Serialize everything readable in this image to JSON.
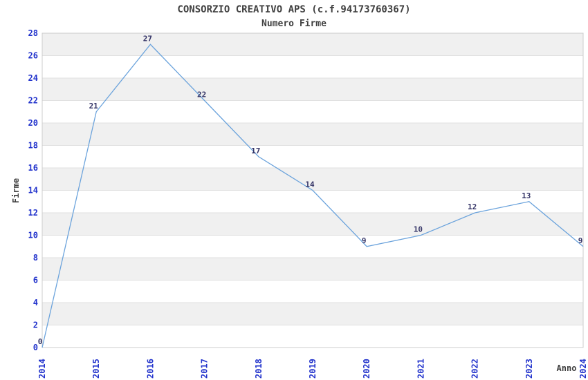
{
  "chart": {
    "title": "CONSORZIO CREATIVO APS (c.f.94173760367)",
    "subtitle": "Numero Firme"
  },
  "chart_data": {
    "type": "line",
    "categories": [
      "2014",
      "2015",
      "2016",
      "2017",
      "2018",
      "2019",
      "2020",
      "2021",
      "2022",
      "2023",
      "2024"
    ],
    "values": [
      0,
      21,
      27,
      22,
      17,
      14,
      9,
      10,
      12,
      13,
      9
    ],
    "title": "CONSORZIO CREATIVO APS (c.f.94173760367)",
    "subtitle": "Numero Firme",
    "xlabel": "Anno",
    "ylabel": "Firme",
    "ylim": [
      0,
      28
    ],
    "ytick_step": 2,
    "grid": true,
    "banded_background": true,
    "legend": "none",
    "data_labels": true,
    "colors": {
      "line": "#6BA3DC",
      "tick_label": "#2233CC",
      "data_label": "#333366",
      "band": "#F0F0F0",
      "gridline": "#E0E0E0",
      "border": "#CCCCCC",
      "text": "#404040"
    }
  }
}
